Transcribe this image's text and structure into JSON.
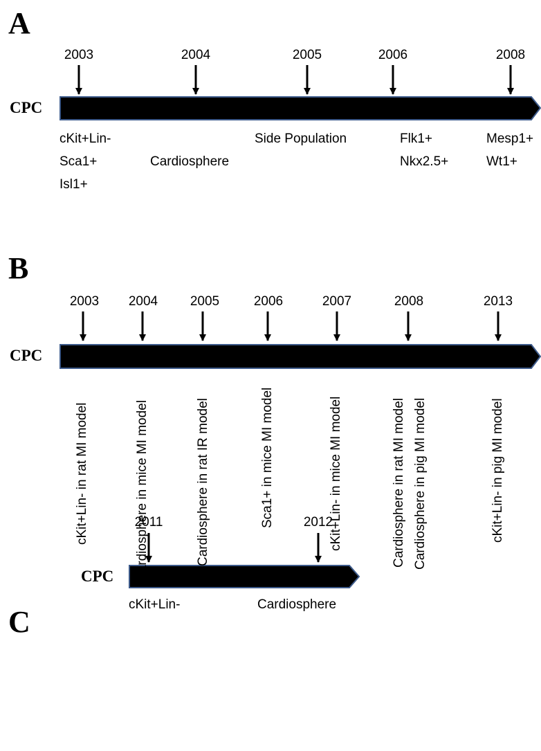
{
  "cpc_label": "CPC",
  "panels": {
    "A": {
      "letter": "A",
      "events": [
        {
          "year": "2003",
          "labels": [
            "cKit+Lin-",
            "Sca1+",
            "Isl1+"
          ]
        },
        {
          "year": "2004",
          "labels": [
            "Cardiosphere"
          ]
        },
        {
          "year": "2005",
          "labels": [
            "Side Population"
          ]
        },
        {
          "year": "2006",
          "labels": [
            "Flk1+",
            "Nkx2.5+"
          ]
        },
        {
          "year": "2008",
          "labels": [
            "Mesp1+",
            "Wt1+"
          ]
        }
      ]
    },
    "B": {
      "letter": "B",
      "events": [
        {
          "year": "2003",
          "labels": [
            "cKit+Lin- in rat MI model"
          ]
        },
        {
          "year": "2004",
          "labels": [
            "Cardiosphere in mice MI model"
          ]
        },
        {
          "year": "2005",
          "labels": [
            "Cardiosphere in rat IR model"
          ]
        },
        {
          "year": "2006",
          "labels": [
            "Sca1+ in mice MI model"
          ]
        },
        {
          "year": "2007",
          "labels": [
            "cKit+Lin- in mice MI model"
          ]
        },
        {
          "year": "2008",
          "labels": [
            "Cardiosphere in rat MI model",
            "Cardiosphere in pig MI model"
          ]
        },
        {
          "year": "2013",
          "labels": [
            "cKit+Lin- in pig MI model"
          ]
        }
      ]
    },
    "C": {
      "letter": "C",
      "events": [
        {
          "year": "2011",
          "labels": [
            "cKit+Lin-"
          ]
        },
        {
          "year": "2012",
          "labels": [
            "Cardiosphere"
          ]
        }
      ]
    }
  },
  "colors": {
    "bar_fill": "#000000",
    "bar_stroke": "#3d5a8a",
    "arrow": "#000000"
  }
}
